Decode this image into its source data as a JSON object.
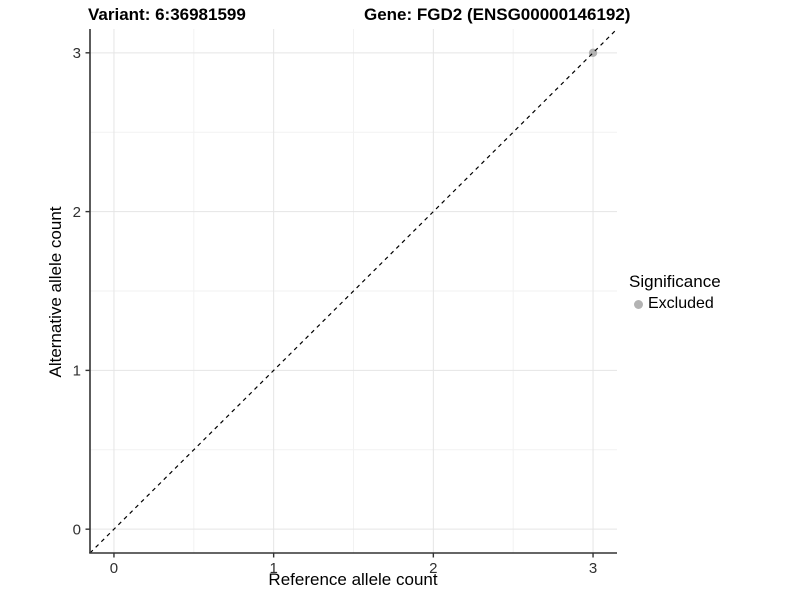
{
  "titles": {
    "variant": "Variant: 6:36981599",
    "gene": "Gene: FGD2 (ENSG00000146192)"
  },
  "legend": {
    "title": "Significance",
    "items": [
      {
        "label": "Excluded",
        "color": "#b3b3b3"
      }
    ]
  },
  "chart_data": {
    "type": "scatter",
    "title": "Variant: 6:36981599   Gene: FGD2 (ENSG00000146192)",
    "xlabel": "Reference allele count",
    "ylabel": "Alternative allele count",
    "xlim": [
      -0.15,
      3.15
    ],
    "ylim": [
      -0.15,
      3.15
    ],
    "x_ticks": [
      0,
      1,
      2,
      3
    ],
    "y_ticks": [
      0,
      1,
      2,
      3
    ],
    "x_minor_ticks": [
      0.5,
      1.5,
      2.5
    ],
    "y_minor_ticks": [
      0.5,
      1.5,
      2.5
    ],
    "grid": {
      "major_color": "#e5e5e5",
      "minor_color": "#f2f2f2",
      "on": true
    },
    "axis_line_color": "#333333",
    "tick_label_color": "#303030",
    "reference_line": {
      "type": "identity",
      "slope": 1,
      "intercept": 0,
      "style": "dashed",
      "color": "#000000"
    },
    "legend_position": "right",
    "series": [
      {
        "name": "Excluded",
        "color": "#b3b3b3",
        "points": [
          {
            "x": 3,
            "y": 3
          }
        ]
      }
    ]
  }
}
